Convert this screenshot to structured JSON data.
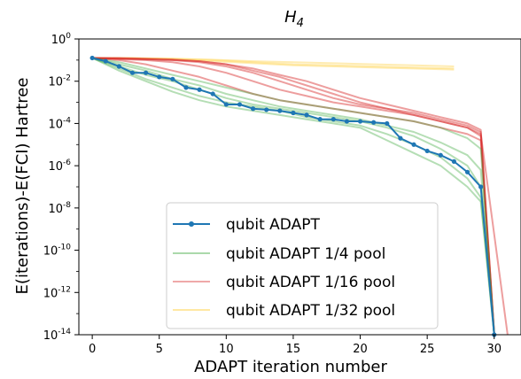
{
  "chart_data": {
    "type": "line",
    "title": "H",
    "title_subscript": "4",
    "xlabel": "ADAPT iteration number",
    "ylabel": "E(iterations)-E(FCI) Hartree",
    "x_ticks": [
      "0",
      "5",
      "10",
      "15",
      "20",
      "25",
      "30"
    ],
    "y_ticks": [
      {
        "base": "10",
        "exp": "0"
      },
      {
        "base": "10",
        "exp": "-2"
      },
      {
        "base": "10",
        "exp": "-4"
      },
      {
        "base": "10",
        "exp": "-6"
      },
      {
        "base": "10",
        "exp": "-8"
      },
      {
        "base": "10",
        "exp": "-10"
      },
      {
        "base": "10",
        "exp": "-12"
      },
      {
        "base": "10",
        "exp": "-14"
      }
    ],
    "xlim": [
      -1,
      32
    ],
    "ylim_log10": [
      -14,
      0
    ],
    "y_scale": "log",
    "legend_position": "lower-left",
    "series": [
      {
        "name": "qubit ADAPT",
        "color": "#1f77b4",
        "marker": "circle",
        "x": [
          0,
          1,
          2,
          3,
          4,
          5,
          6,
          7,
          8,
          9,
          10,
          11,
          12,
          13,
          14,
          15,
          16,
          17,
          18,
          19,
          20,
          21,
          22,
          23,
          24,
          25,
          26,
          27,
          28,
          29,
          30
        ],
        "log10_y": [
          -0.9,
          -1.05,
          -1.3,
          -1.6,
          -1.6,
          -1.8,
          -1.9,
          -2.3,
          -2.4,
          -2.6,
          -3.1,
          -3.1,
          -3.3,
          -3.35,
          -3.4,
          -3.5,
          -3.6,
          -3.8,
          -3.8,
          -3.9,
          -3.9,
          -3.95,
          -4.0,
          -4.7,
          -5.0,
          -5.3,
          -5.5,
          -5.8,
          -6.3,
          -7.0,
          -14.0
        ]
      },
      {
        "name": "qubit ADAPT 1/4 pool",
        "color": "#2ca02c",
        "runs": [
          {
            "x": [
              0,
              2,
              4,
              6,
              8,
              10,
              12,
              14,
              16,
              18,
              20,
              22,
              24,
              26,
              28,
              29,
              30
            ],
            "log10_y": [
              -0.9,
              -1.3,
              -1.7,
              -2.0,
              -2.4,
              -2.8,
              -3.1,
              -3.3,
              -3.5,
              -3.7,
              -3.9,
              -4.2,
              -4.6,
              -5.2,
              -6.0,
              -7.0,
              -14.0
            ]
          },
          {
            "x": [
              0,
              2,
              4,
              6,
              8,
              10,
              12,
              14,
              16,
              18,
              20,
              22,
              24,
              26,
              28,
              29,
              30
            ],
            "log10_y": [
              -0.9,
              -1.4,
              -1.9,
              -2.3,
              -2.7,
              -3.0,
              -3.2,
              -3.4,
              -3.7,
              -3.9,
              -4.1,
              -4.5,
              -5.0,
              -5.6,
              -6.6,
              -7.5,
              -14.0
            ]
          },
          {
            "x": [
              0,
              2,
              4,
              6,
              8,
              10,
              12,
              14,
              16,
              18,
              20,
              22,
              24,
              26,
              28,
              29,
              30
            ],
            "log10_y": [
              -0.9,
              -1.2,
              -1.5,
              -1.9,
              -2.2,
              -2.6,
              -2.9,
              -3.2,
              -3.4,
              -3.6,
              -3.8,
              -4.1,
              -4.4,
              -4.9,
              -5.5,
              -6.2,
              -14.0
            ]
          },
          {
            "x": [
              0,
              2,
              4,
              6,
              8,
              10,
              12,
              14,
              16,
              18,
              20,
              22,
              24,
              26,
              28,
              29,
              30
            ],
            "log10_y": [
              -0.9,
              -1.1,
              -1.4,
              -1.7,
              -2.0,
              -2.3,
              -2.6,
              -2.9,
              -3.1,
              -3.3,
              -3.5,
              -3.7,
              -3.9,
              -4.2,
              -4.7,
              -5.2,
              -14.0
            ]
          },
          {
            "x": [
              0,
              2,
              4,
              6,
              8,
              10,
              12,
              14,
              16,
              18,
              20,
              22,
              24,
              26,
              28,
              29,
              30
            ],
            "log10_y": [
              -0.9,
              -1.5,
              -2.0,
              -2.5,
              -2.9,
              -3.2,
              -3.4,
              -3.6,
              -3.8,
              -4.0,
              -4.2,
              -4.8,
              -5.4,
              -6.0,
              -7.0,
              -7.7,
              -14.0
            ]
          }
        ]
      },
      {
        "name": "qubit ADAPT 1/16 pool",
        "color": "#d62728",
        "runs": [
          {
            "x": [
              0,
              2,
              4,
              6,
              8,
              10,
              12,
              14,
              16,
              18,
              20,
              22,
              24,
              26,
              28,
              29,
              30
            ],
            "log10_y": [
              -0.9,
              -1.0,
              -1.2,
              -1.5,
              -1.8,
              -2.2,
              -2.6,
              -2.9,
              -3.1,
              -3.3,
              -3.5,
              -3.7,
              -3.9,
              -4.2,
              -4.5,
              -4.8,
              -14.0
            ]
          },
          {
            "x": [
              0,
              2,
              4,
              6,
              8,
              10,
              12,
              14,
              16,
              18,
              20,
              22,
              24,
              26,
              28,
              29,
              30
            ],
            "log10_y": [
              -0.9,
              -0.95,
              -1.0,
              -1.1,
              -1.3,
              -1.6,
              -2.0,
              -2.4,
              -2.7,
              -3.0,
              -3.2,
              -3.4,
              -3.6,
              -3.9,
              -4.2,
              -4.6,
              -14.0
            ]
          },
          {
            "x": [
              0,
              2,
              4,
              6,
              8,
              10,
              12,
              14,
              16,
              18,
              20,
              22,
              24,
              26,
              28,
              29,
              30
            ],
            "log10_y": [
              -0.9,
              -0.92,
              -0.95,
              -1.0,
              -1.1,
              -1.3,
              -1.6,
              -2.0,
              -2.4,
              -2.8,
              -3.1,
              -3.3,
              -3.5,
              -3.8,
              -4.1,
              -4.4,
              -14.0
            ]
          },
          {
            "x": [
              0,
              2,
              4,
              6,
              8,
              10,
              12,
              14,
              16,
              18,
              20,
              22,
              24,
              26,
              28,
              29,
              31
            ],
            "log10_y": [
              -0.9,
              -0.93,
              -0.97,
              -1.0,
              -1.05,
              -1.2,
              -1.5,
              -1.8,
              -2.2,
              -2.6,
              -3.0,
              -3.3,
              -3.6,
              -3.9,
              -4.2,
              -4.5,
              -14.0
            ]
          },
          {
            "x": [
              0,
              2,
              4,
              6,
              8,
              10,
              12,
              14,
              16,
              18,
              20,
              22,
              24,
              26,
              28,
              29,
              30
            ],
            "log10_y": [
              -0.9,
              -0.9,
              -0.93,
              -0.97,
              -1.05,
              -1.2,
              -1.4,
              -1.7,
              -2.0,
              -2.4,
              -2.8,
              -3.1,
              -3.4,
              -3.7,
              -4.0,
              -4.3,
              -14.0
            ]
          }
        ]
      },
      {
        "name": "qubit ADAPT 1/32 pool",
        "color": "#ffd966",
        "runs": [
          {
            "x": [
              0,
              3,
              6,
              9,
              12,
              15,
              18,
              21,
              24,
              27
            ],
            "log10_y": [
              -0.9,
              -0.92,
              -0.94,
              -1.0,
              -1.1,
              -1.2,
              -1.25,
              -1.3,
              -1.35,
              -1.4
            ]
          },
          {
            "x": [
              0,
              3,
              6,
              9,
              12,
              15,
              18,
              21,
              24,
              27
            ],
            "log10_y": [
              -0.9,
              -0.9,
              -0.95,
              -1.05,
              -1.15,
              -1.25,
              -1.3,
              -1.35,
              -1.4,
              -1.45
            ]
          },
          {
            "x": [
              0,
              3,
              6,
              9,
              12,
              15,
              18,
              21,
              24,
              27
            ],
            "log10_y": [
              -0.9,
              -0.91,
              -0.93,
              -0.98,
              -1.05,
              -1.1,
              -1.15,
              -1.2,
              -1.25,
              -1.3
            ]
          }
        ]
      }
    ]
  }
}
